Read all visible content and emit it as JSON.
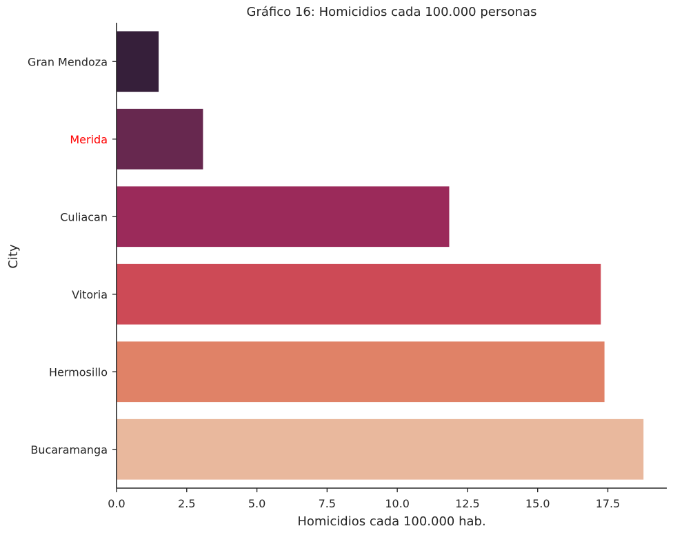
{
  "chart_data": {
    "type": "bar",
    "orientation": "horizontal",
    "title": "Gráfico 16: Homicidios cada 100.000 personas",
    "xlabel": "Homicidios cada 100.000 hab.",
    "ylabel": "City",
    "xlim": [
      0,
      19.6
    ],
    "xticks": [
      0.0,
      2.5,
      5.0,
      7.5,
      10.0,
      12.5,
      15.0,
      17.5
    ],
    "xtick_labels": [
      "0.0",
      "2.5",
      "5.0",
      "7.5",
      "10.0",
      "12.5",
      "15.0",
      "17.5"
    ],
    "grid": false,
    "categories": [
      "Gran Mendoza",
      "Merida",
      "Culiacan",
      "Vitoria",
      "Hermosillo",
      "Bucaramanga"
    ],
    "values": [
      1.5,
      3.08,
      11.85,
      17.25,
      17.38,
      18.77
    ],
    "bar_colors": [
      "#361f3a",
      "#67284f",
      "#9b2a5a",
      "#cd4a56",
      "#e08267",
      "#e9b89d"
    ],
    "label_colors": [
      "#262626",
      "#ff0000",
      "#262626",
      "#262626",
      "#262626",
      "#262626"
    ]
  }
}
